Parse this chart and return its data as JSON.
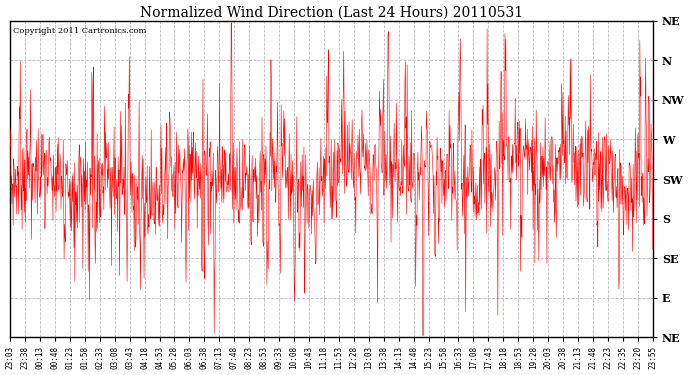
{
  "title": "Normalized Wind Direction (Last 24 Hours) 20110531",
  "copyright_text": "Copyright 2011 Cartronics.com",
  "line_color": "#ff0000",
  "background_color": "#ffffff",
  "plot_bg_color": "#ffffff",
  "grid_color": "#bbbbbb",
  "border_color": "#000000",
  "y_labels": [
    "NE",
    "N",
    "NW",
    "W",
    "SW",
    "S",
    "SE",
    "E",
    "NE"
  ],
  "y_values": [
    8,
    7,
    6,
    5,
    4,
    3,
    2,
    1,
    0
  ],
  "ylim": [
    0,
    8
  ],
  "x_tick_labels": [
    "23:03",
    "23:38",
    "00:13",
    "00:48",
    "01:23",
    "01:58",
    "02:33",
    "03:08",
    "03:43",
    "04:18",
    "04:53",
    "05:28",
    "06:03",
    "06:38",
    "07:13",
    "07:48",
    "08:23",
    "08:53",
    "09:33",
    "10:08",
    "10:43",
    "11:18",
    "11:53",
    "12:28",
    "13:03",
    "13:38",
    "14:13",
    "14:48",
    "15:23",
    "15:58",
    "16:33",
    "17:08",
    "17:43",
    "18:18",
    "18:53",
    "19:28",
    "20:03",
    "20:38",
    "21:13",
    "21:48",
    "22:23",
    "22:35",
    "23:20",
    "23:55"
  ],
  "figsize": [
    6.9,
    3.75
  ],
  "dpi": 100
}
